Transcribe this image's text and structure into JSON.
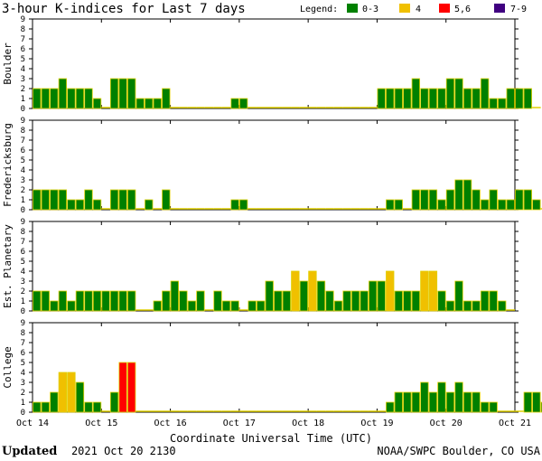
{
  "title": "3-hour K-indices for Last 7 days",
  "legend": {
    "label": "Legend:",
    "items": [
      {
        "label": "0-3",
        "color": "#008000"
      },
      {
        "label": "4",
        "color": "#f0c000"
      },
      {
        "label": "5,6",
        "color": "#ff0000"
      },
      {
        "label": "7-9",
        "color": "#400080"
      }
    ]
  },
  "footer": {
    "updated_label": "Updated",
    "updated_value": "2021 Oct 20 2130",
    "source": "NOAA/SWPC Boulder, CO USA"
  },
  "chart_data": {
    "type": "bar",
    "xlabel": "Coordinate Universal Time (UTC)",
    "x_ticks": [
      "Oct 14",
      "Oct 15",
      "Oct 16",
      "Oct 17",
      "Oct 18",
      "Oct 19",
      "Oct 20",
      "Oct 21"
    ],
    "ylim": [
      0,
      9
    ],
    "y_ticks": [
      0,
      1,
      2,
      3,
      4,
      5,
      6,
      7,
      8,
      9
    ],
    "color_scale": {
      "0-3": "#008000",
      "4": "#f0c000",
      "5,6": "#ff0000",
      "7-9": "#400080"
    },
    "panels": [
      {
        "name": "Boulder",
        "values": [
          2,
          2,
          2,
          3,
          2,
          2,
          2,
          1,
          0,
          3,
          3,
          3,
          1,
          1,
          1,
          2,
          0,
          0,
          0,
          0,
          0,
          0,
          0,
          1,
          1,
          0,
          0,
          0,
          0,
          0,
          0,
          0,
          0,
          0,
          0,
          0,
          0,
          0,
          0,
          0,
          2,
          2,
          2,
          2,
          3,
          2,
          2,
          2,
          3,
          3,
          2,
          2,
          3,
          1,
          1,
          2,
          2,
          2,
          0
        ]
      },
      {
        "name": "Fredericksburg",
        "values": [
          2,
          2,
          2,
          2,
          1,
          1,
          2,
          1,
          0,
          2,
          2,
          2,
          0,
          1,
          0,
          2,
          0,
          0,
          0,
          0,
          0,
          0,
          0,
          1,
          1,
          0,
          0,
          0,
          0,
          0,
          0,
          0,
          0,
          0,
          0,
          0,
          0,
          0,
          0,
          0,
          0,
          1,
          1,
          0,
          2,
          2,
          2,
          1,
          2,
          3,
          3,
          2,
          1,
          2,
          1,
          1,
          2,
          2,
          1,
          0
        ]
      },
      {
        "name": "Est. Planetary",
        "values": [
          2,
          2,
          1,
          2,
          1,
          2,
          2,
          2,
          2,
          2,
          2,
          2,
          0,
          0,
          1,
          2,
          3,
          2,
          1,
          2,
          0,
          2,
          1,
          1,
          0,
          1,
          1,
          3,
          2,
          2,
          4,
          3,
          4,
          3,
          2,
          1,
          2,
          2,
          2,
          3,
          3,
          4,
          2,
          2,
          2,
          4,
          4,
          2,
          1,
          3,
          1,
          1,
          2,
          2,
          1,
          0
        ]
      },
      {
        "name": "College",
        "values": [
          1,
          1,
          2,
          4,
          4,
          3,
          1,
          1,
          0,
          2,
          5,
          5,
          0,
          0,
          0,
          0,
          0,
          0,
          0,
          0,
          0,
          0,
          0,
          0,
          0,
          0,
          0,
          0,
          0,
          0,
          0,
          0,
          0,
          0,
          0,
          0,
          0,
          0,
          0,
          0,
          0,
          1,
          2,
          2,
          2,
          3,
          2,
          3,
          2,
          3,
          2,
          2,
          1,
          1,
          0,
          0,
          0,
          2,
          2,
          1,
          0
        ]
      }
    ]
  }
}
